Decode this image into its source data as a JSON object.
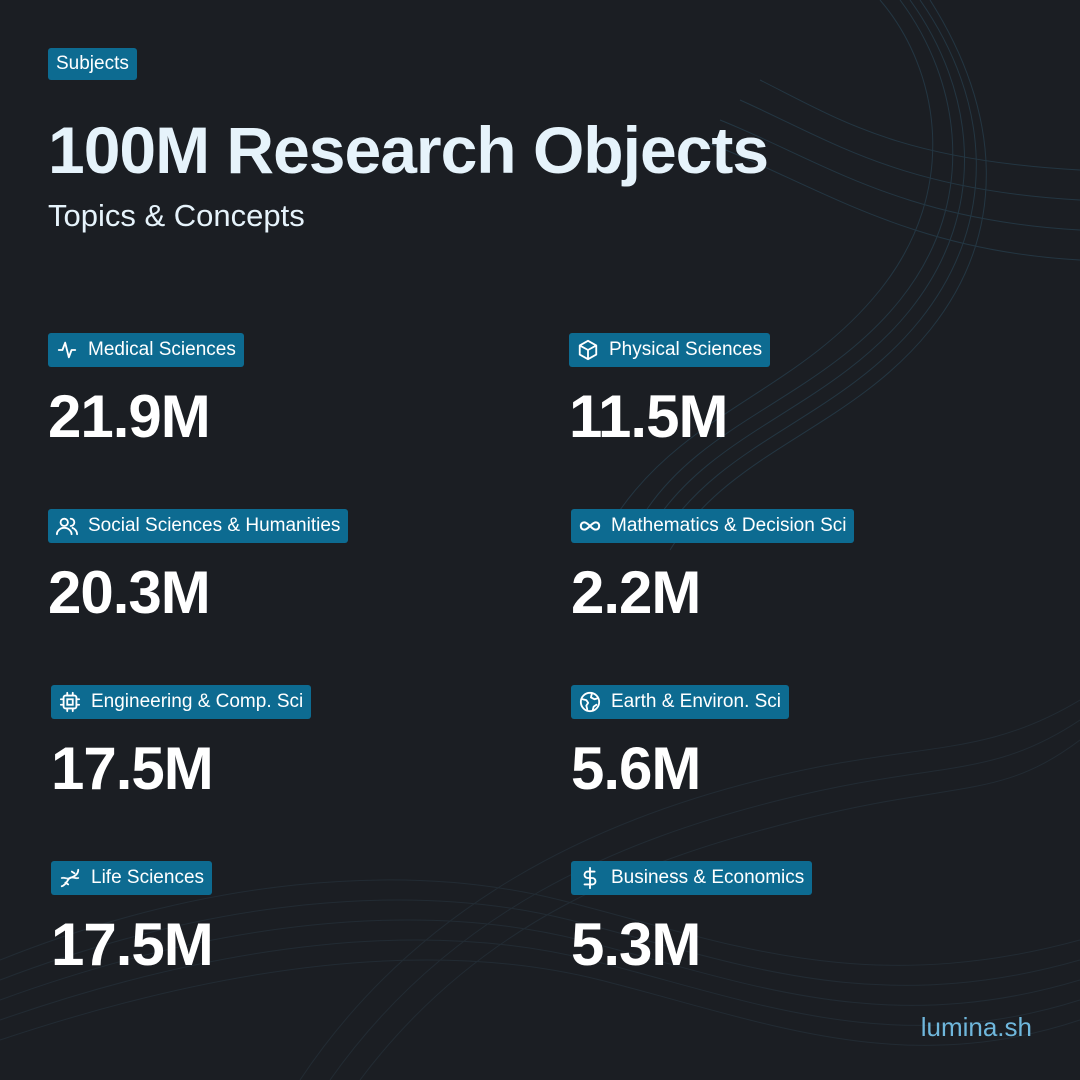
{
  "header": {
    "tag": "Subjects",
    "title": "100M Research Objects",
    "subtitle": "Topics & Concepts"
  },
  "subjects": [
    {
      "label": "Medical Sciences",
      "value": "21.9M",
      "icon": "pulse-icon"
    },
    {
      "label": "Physical Sciences",
      "value": "11.5M",
      "icon": "cube-icon"
    },
    {
      "label": "Social Sciences & Humanities",
      "value": "20.3M",
      "icon": "users-icon"
    },
    {
      "label": "Mathematics & Decision Sci",
      "value": "2.2M",
      "icon": "infinity-icon"
    },
    {
      "label": "Engineering & Comp. Sci",
      "value": "17.5M",
      "icon": "chip-icon"
    },
    {
      "label": "Earth & Environ. Sci",
      "value": "5.6M",
      "icon": "globe-icon"
    },
    {
      "label": "Life Sciences",
      "value": "17.5M",
      "icon": "dna-icon"
    },
    {
      "label": "Business & Economics",
      "value": "5.3M",
      "icon": "dollar-icon"
    }
  ],
  "footer": {
    "brand": "lumina.sh"
  },
  "colors": {
    "background": "#1b1e23",
    "tag": "#0d6b91",
    "title": "#e6f3fb",
    "brand": "#6fb7dc"
  }
}
